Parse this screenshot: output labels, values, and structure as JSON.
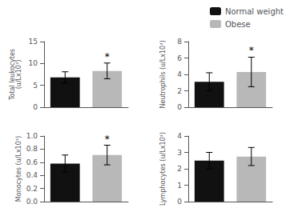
{
  "chart_data": [
    {
      "type": "bar",
      "ylabel": "Total leukocytes\n(u/Lx10³)",
      "series": [
        {
          "name": "Normal weight",
          "color": "#111111",
          "values": [
            6.8
          ],
          "errors": [
            1.3
          ]
        },
        {
          "name": "Obese",
          "color": "#b8b8b8",
          "values": [
            8.3
          ],
          "errors": [
            1.8
          ]
        }
      ],
      "annotations": [
        {
          "text": "*",
          "series": "Obese",
          "y": 10.4
        }
      ],
      "ylim": [
        0,
        15
      ],
      "yticks": [
        0,
        5,
        10,
        15
      ],
      "grid": false,
      "tick_labels": "y",
      "legend": "upper right"
    },
    {
      "type": "bar",
      "ylabel": "Neutrophils (u/Lx10³)",
      "series": [
        {
          "name": "Normal weight",
          "color": "#111111",
          "values": [
            3.1
          ],
          "errors": [
            1.1
          ]
        },
        {
          "name": "Obese",
          "color": "#b8b8b8",
          "values": [
            4.3
          ],
          "errors": [
            1.8
          ]
        }
      ],
      "annotations": [
        {
          "text": "*",
          "series": "Obese",
          "y": 6.3
        }
      ],
      "ylim": [
        0,
        8
      ],
      "yticks": [
        0,
        2,
        4,
        6,
        8
      ],
      "grid": false,
      "tick_labels": "y"
    },
    {
      "type": "bar",
      "ylabel": "Monocytes (u/Lx10³)",
      "series": [
        {
          "name": "Normal weight",
          "color": "#111111",
          "values": [
            0.58
          ],
          "errors": [
            0.13
          ]
        },
        {
          "name": "Obese",
          "color": "#b8b8b8",
          "values": [
            0.71
          ],
          "errors": [
            0.15
          ]
        }
      ],
      "annotations": [
        {
          "text": "*",
          "series": "Obese",
          "y": 0.875
        }
      ],
      "ylim": [
        0.0,
        1.0
      ],
      "yticks": [
        {
          "value": 0.0,
          "label": "0.0"
        },
        0.2,
        0.4,
        0.6,
        0.8,
        {
          "value": 1.0,
          "label": "1.0"
        }
      ],
      "grid": false,
      "tick_labels": "y"
    },
    {
      "type": "bar",
      "ylabel": "Lymphocytes (u/Lx10³)",
      "series": [
        {
          "name": "Normal weight",
          "color": "#111111",
          "values": [
            2.5
          ],
          "errors": [
            0.5
          ]
        },
        {
          "name": "Obese",
          "color": "#b8b8b8",
          "values": [
            2.75
          ],
          "errors": [
            0.55
          ]
        }
      ],
      "annotations": [],
      "ylim": [
        0,
        4
      ],
      "yticks": [
        0,
        1,
        2,
        3,
        4
      ],
      "grid": false,
      "tick_labels": "y"
    }
  ]
}
